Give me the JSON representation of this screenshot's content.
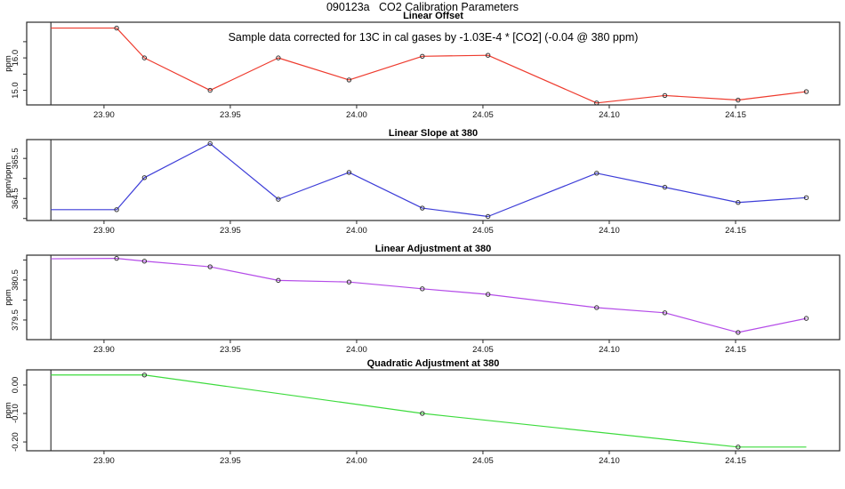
{
  "figure": {
    "title": "090123a   CO2 Calibration Parameters",
    "annotation": "Sample data corrected for 13C in cal gases by -1.03E-4 * [CO2] (-0.04 @ 380 ppm)"
  },
  "chart_data": {
    "type": "line",
    "xlim": [
      23.8694,
      24.1912
    ],
    "xticks": [
      {
        "v": 23.9,
        "label": "23.90"
      },
      {
        "v": 23.95,
        "label": "23.95"
      },
      {
        "v": 24.0,
        "label": "24.00"
      },
      {
        "v": 24.05,
        "label": "24.05"
      },
      {
        "v": 24.1,
        "label": "24.10"
      },
      {
        "v": 24.15,
        "label": "24.15"
      }
    ],
    "vline_x": 23.879,
    "axis_color": "#2a2a2a",
    "vline_color": "#555555",
    "marker_color": "#333333",
    "panels": [
      {
        "title": "Linear Offset",
        "ylabel": "ppm",
        "color": "#ee3b2e",
        "x": [
          23.879,
          23.905,
          23.916,
          23.942,
          23.969,
          23.997,
          24.026,
          24.052,
          24.095,
          24.122,
          24.151,
          24.178
        ],
        "values": [
          16.92,
          16.92,
          16.0,
          15.0,
          16.0,
          15.32,
          16.05,
          16.08,
          14.61,
          14.84,
          14.7,
          14.96
        ],
        "marker_indices": [
          1,
          2,
          3,
          4,
          5,
          6,
          7,
          8,
          9,
          10,
          11
        ],
        "ylim": [
          14.55,
          17.1
        ],
        "yticks": [
          {
            "v": 15.0,
            "label": "15.0"
          },
          {
            "v": 16.0,
            "label": "16.0"
          }
        ],
        "yticks_minor": [
          15.5,
          16.5
        ]
      },
      {
        "title": "Linear Slope at 380",
        "ylabel": "ppm/ppm",
        "color": "#3d3dd8",
        "x": [
          23.879,
          23.905,
          23.916,
          23.942,
          23.969,
          23.997,
          24.026,
          24.052,
          24.095,
          24.122,
          24.151,
          24.178
        ],
        "values": [
          364.22,
          364.22,
          365.02,
          365.87,
          364.48,
          365.15,
          364.26,
          364.05,
          365.13,
          364.78,
          364.4,
          364.52
        ],
        "marker_indices": [
          1,
          2,
          3,
          4,
          5,
          6,
          7,
          8,
          9,
          10,
          11
        ],
        "ylim": [
          363.95,
          365.97
        ],
        "yticks": [
          {
            "v": 364.5,
            "label": "364.5"
          },
          {
            "v": 365.5,
            "label": "365.5"
          }
        ],
        "yticks_minor": [
          364.0,
          365.0
        ]
      },
      {
        "title": "Linear Adjustment at 380",
        "ylabel": "ppm",
        "color": "#b44be8",
        "x": [
          23.879,
          23.905,
          23.916,
          23.942,
          23.969,
          23.997,
          24.026,
          24.052,
          24.095,
          24.122,
          24.151,
          24.178
        ],
        "values": [
          381.03,
          381.04,
          380.97,
          380.83,
          380.49,
          380.45,
          380.28,
          380.14,
          379.81,
          379.68,
          379.19,
          379.54
        ],
        "marker_indices": [
          1,
          2,
          3,
          4,
          5,
          6,
          7,
          8,
          9,
          10,
          11
        ],
        "ylim": [
          379.01,
          381.12
        ],
        "yticks": [
          {
            "v": 379.5,
            "label": "379.5"
          },
          {
            "v": 380.5,
            "label": "380.5"
          }
        ],
        "yticks_minor": [
          380.0,
          381.0
        ]
      },
      {
        "title": "Quadratic Adjustment at 380",
        "ylabel": "ppm",
        "color": "#3ddb3d",
        "x": [
          23.879,
          23.916,
          24.026,
          24.151,
          24.178
        ],
        "values": [
          0.035,
          0.035,
          -0.1,
          -0.218,
          -0.218
        ],
        "marker_indices": [
          1,
          2,
          3
        ],
        "ylim": [
          -0.231,
          0.053
        ],
        "yticks": [
          {
            "v": 0.0,
            "label": "0.00"
          },
          {
            "v": -0.1,
            "label": "-0.10"
          },
          {
            "v": -0.2,
            "label": "-0.20"
          }
        ],
        "yticks_minor": []
      }
    ]
  }
}
